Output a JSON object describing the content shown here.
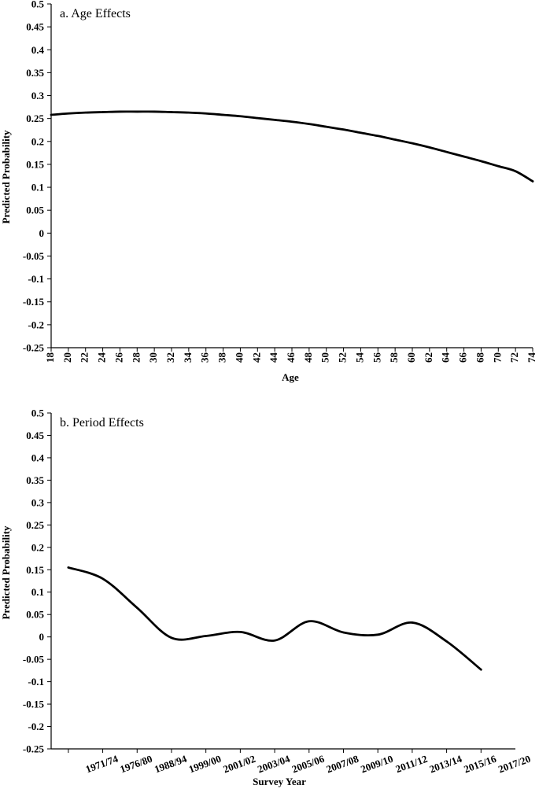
{
  "chart_data": [
    {
      "type": "line",
      "title": "a. Age Effects",
      "xlabel": "Age",
      "ylabel": "Predicted Probability",
      "ylim": [
        -0.25,
        0.5
      ],
      "yticks": [
        "0.5",
        "0.45",
        "0.4",
        "0.35",
        "0.3",
        "0.25",
        "0.2",
        "0.15",
        "0.1",
        "0.05",
        "0",
        "-0.05",
        "-0.1",
        "-0.15",
        "-0.2",
        "-0.25"
      ],
      "categories": [
        "18",
        "20",
        "22",
        "24",
        "26",
        "28",
        "30",
        "32",
        "34",
        "36",
        "38",
        "40",
        "42",
        "44",
        "46",
        "48",
        "50",
        "52",
        "54",
        "56",
        "58",
        "60",
        "62",
        "64",
        "66",
        "68",
        "70",
        "72",
        "74"
      ],
      "series": [
        {
          "values": [
            0.258,
            0.261,
            0.263,
            0.264,
            0.265,
            0.265,
            0.265,
            0.264,
            0.263,
            0.261,
            0.258,
            0.255,
            0.251,
            0.247,
            0.243,
            0.238,
            0.232,
            0.226,
            0.219,
            0.212,
            0.204,
            0.196,
            0.187,
            0.177,
            0.167,
            0.157,
            0.146,
            0.135,
            0.113
          ]
        }
      ],
      "grid": false
    },
    {
      "type": "line",
      "title": "b. Period Effects",
      "xlabel": "Survey Year",
      "ylabel": "Predicted Probability",
      "ylim": [
        -0.25,
        0.5
      ],
      "yticks": [
        "0.5",
        "0.45",
        "0.4",
        "0.35",
        "0.3",
        "0.25",
        "0.2",
        "0.15",
        "0.1",
        "0.05",
        "0",
        "-0.05",
        "-0.1",
        "-0.15",
        "-0.2",
        "-0.25"
      ],
      "categories": [
        "1971/74",
        "1976/80",
        "1988/94",
        "1999/00",
        "2001/02",
        "2003/04",
        "2005/06",
        "2007/08",
        "2009/10",
        "2011/12",
        "2013/14",
        "2015/16",
        "2017/20"
      ],
      "series": [
        {
          "values": [
            0.155,
            0.13,
            0.065,
            -0.002,
            0.002,
            0.011,
            -0.008,
            0.035,
            0.01,
            0.005,
            0.032,
            -0.01,
            -0.073
          ]
        }
      ],
      "grid": false
    }
  ]
}
